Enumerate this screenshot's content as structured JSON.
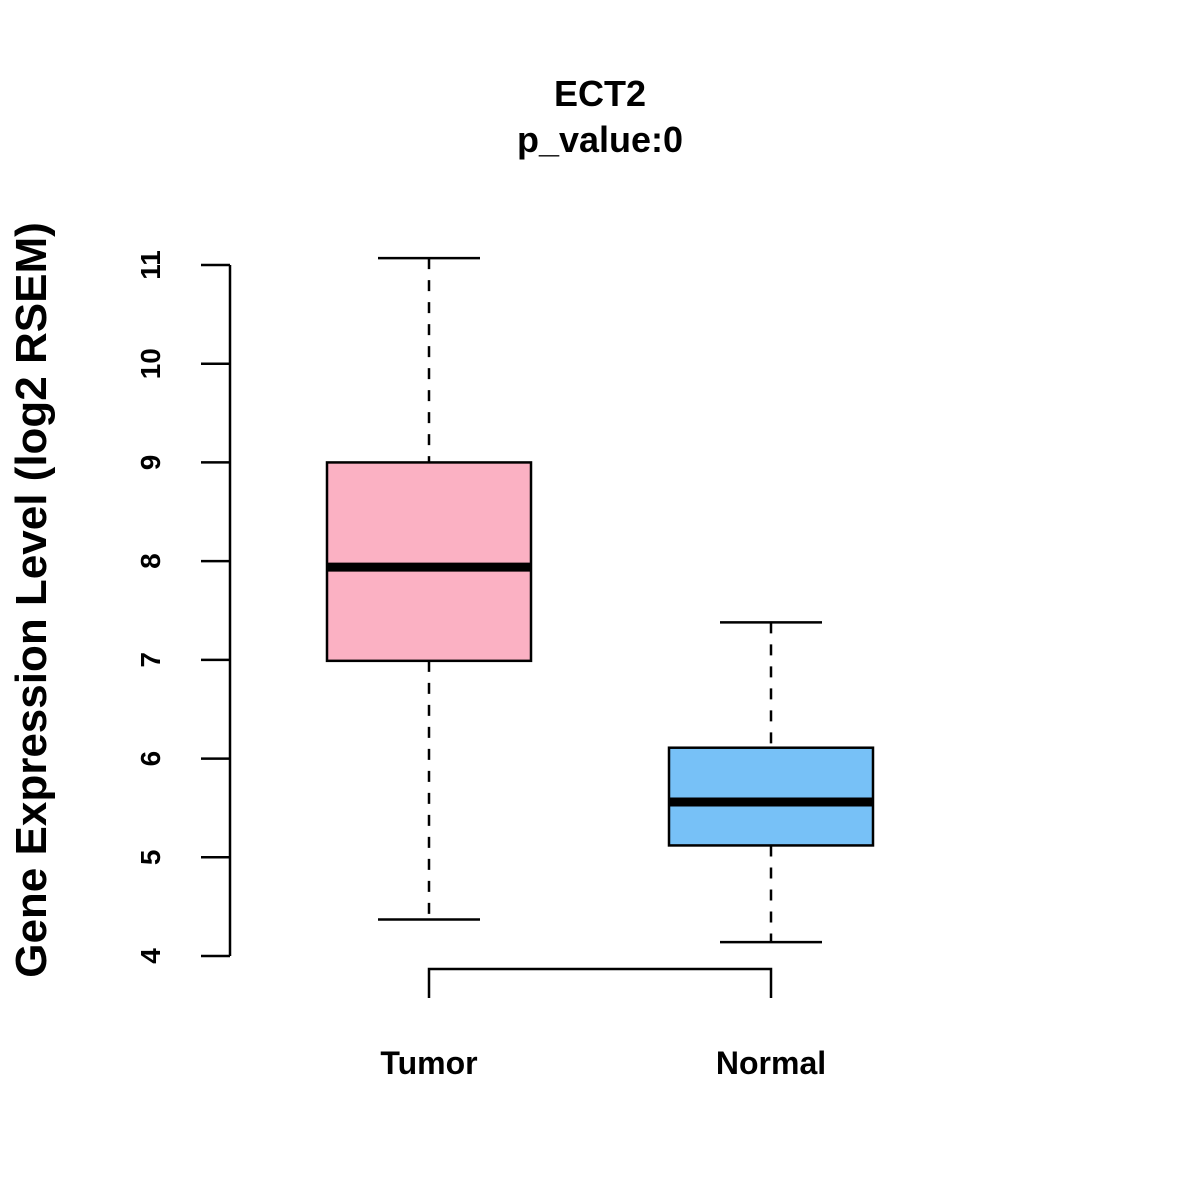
{
  "chart_data": {
    "type": "boxplot",
    "title": "ECT2",
    "subtitle": "p_value:0",
    "xlabel": "",
    "ylabel": "Gene Expression Level (log2 RSEM)",
    "ylim": [
      4,
      11
    ],
    "yticks": [
      4,
      5,
      6,
      7,
      8,
      9,
      10,
      11
    ],
    "categories": [
      "Tumor",
      "Normal"
    ],
    "boxes": [
      {
        "name": "Tumor",
        "min": 4.37,
        "q1": 6.99,
        "median": 7.94,
        "q3": 9.0,
        "max": 11.07,
        "color": "#FBB1C3"
      },
      {
        "name": "Normal",
        "min": 4.14,
        "q1": 5.12,
        "median": 5.56,
        "q3": 6.11,
        "max": 7.38,
        "color": "#77C1F7"
      }
    ],
    "comparison_bracket": {
      "from": "Tumor",
      "to": "Normal"
    }
  }
}
